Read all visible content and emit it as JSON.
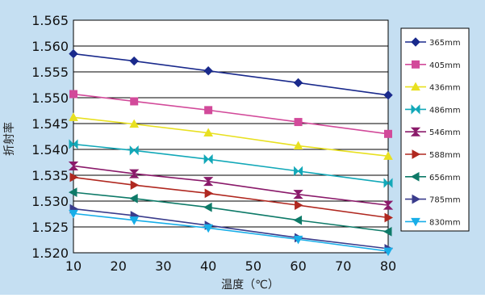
{
  "chart_data": {
    "type": "line",
    "xlabel": "温度（℃）",
    "ylabel": "折射率",
    "xlim": [
      10,
      80
    ],
    "ylim": [
      1.52,
      1.565
    ],
    "x_ticks": [
      "10",
      "20",
      "30",
      "40",
      "50",
      "60",
      "70",
      "80"
    ],
    "y_ticks": [
      "1.520",
      "1.525",
      "1.530",
      "1.535",
      "1.540",
      "1.545",
      "1.550",
      "1.555",
      "1.560",
      "1.565"
    ],
    "grid": "horizontal",
    "legend_position": "right",
    "x": [
      10,
      23.5,
      40,
      60,
      80
    ],
    "series": [
      {
        "name": "365mm",
        "color": "#1a2a8c",
        "marker": "diamond",
        "values": [
          1.5585,
          1.5571,
          1.5552,
          1.5529,
          1.5505
        ]
      },
      {
        "name": "405mm",
        "color": "#d24a9a",
        "marker": "square",
        "values": [
          1.5507,
          1.5493,
          1.5476,
          1.5453,
          1.543
        ]
      },
      {
        "name": "436mm",
        "color": "#e8e020",
        "marker": "triangle-up",
        "values": [
          1.5462,
          1.5449,
          1.5432,
          1.5407,
          1.5387
        ]
      },
      {
        "name": "486mm",
        "color": "#12a8b8",
        "marker": "x-bar",
        "values": [
          1.541,
          1.5398,
          1.5381,
          1.5358,
          1.5335
        ]
      },
      {
        "name": "546mm",
        "color": "#8a1a6a",
        "marker": "hourglass",
        "values": [
          1.5368,
          1.5353,
          1.5338,
          1.5313,
          1.5292
        ]
      },
      {
        "name": "588mm",
        "color": "#b02820",
        "marker": "triangle-right",
        "values": [
          1.5346,
          1.5331,
          1.5315,
          1.5292,
          1.5268
        ]
      },
      {
        "name": "656mm",
        "color": "#0e7a68",
        "marker": "triangle-left",
        "values": [
          1.5317,
          1.5305,
          1.5288,
          1.5263,
          1.5241
        ]
      },
      {
        "name": "785mm",
        "color": "#3a3c8c",
        "marker": "triangle-right",
        "values": [
          1.5285,
          1.5272,
          1.5253,
          1.5229,
          1.5208
        ]
      },
      {
        "name": "830mm",
        "color": "#18aee8",
        "marker": "triangle-down",
        "values": [
          1.5276,
          1.5263,
          1.5248,
          1.5226,
          1.5203
        ]
      }
    ],
    "colors": {
      "background": "#c5dff2",
      "plot_area": "#ffffff",
      "grid": "#000000"
    }
  }
}
